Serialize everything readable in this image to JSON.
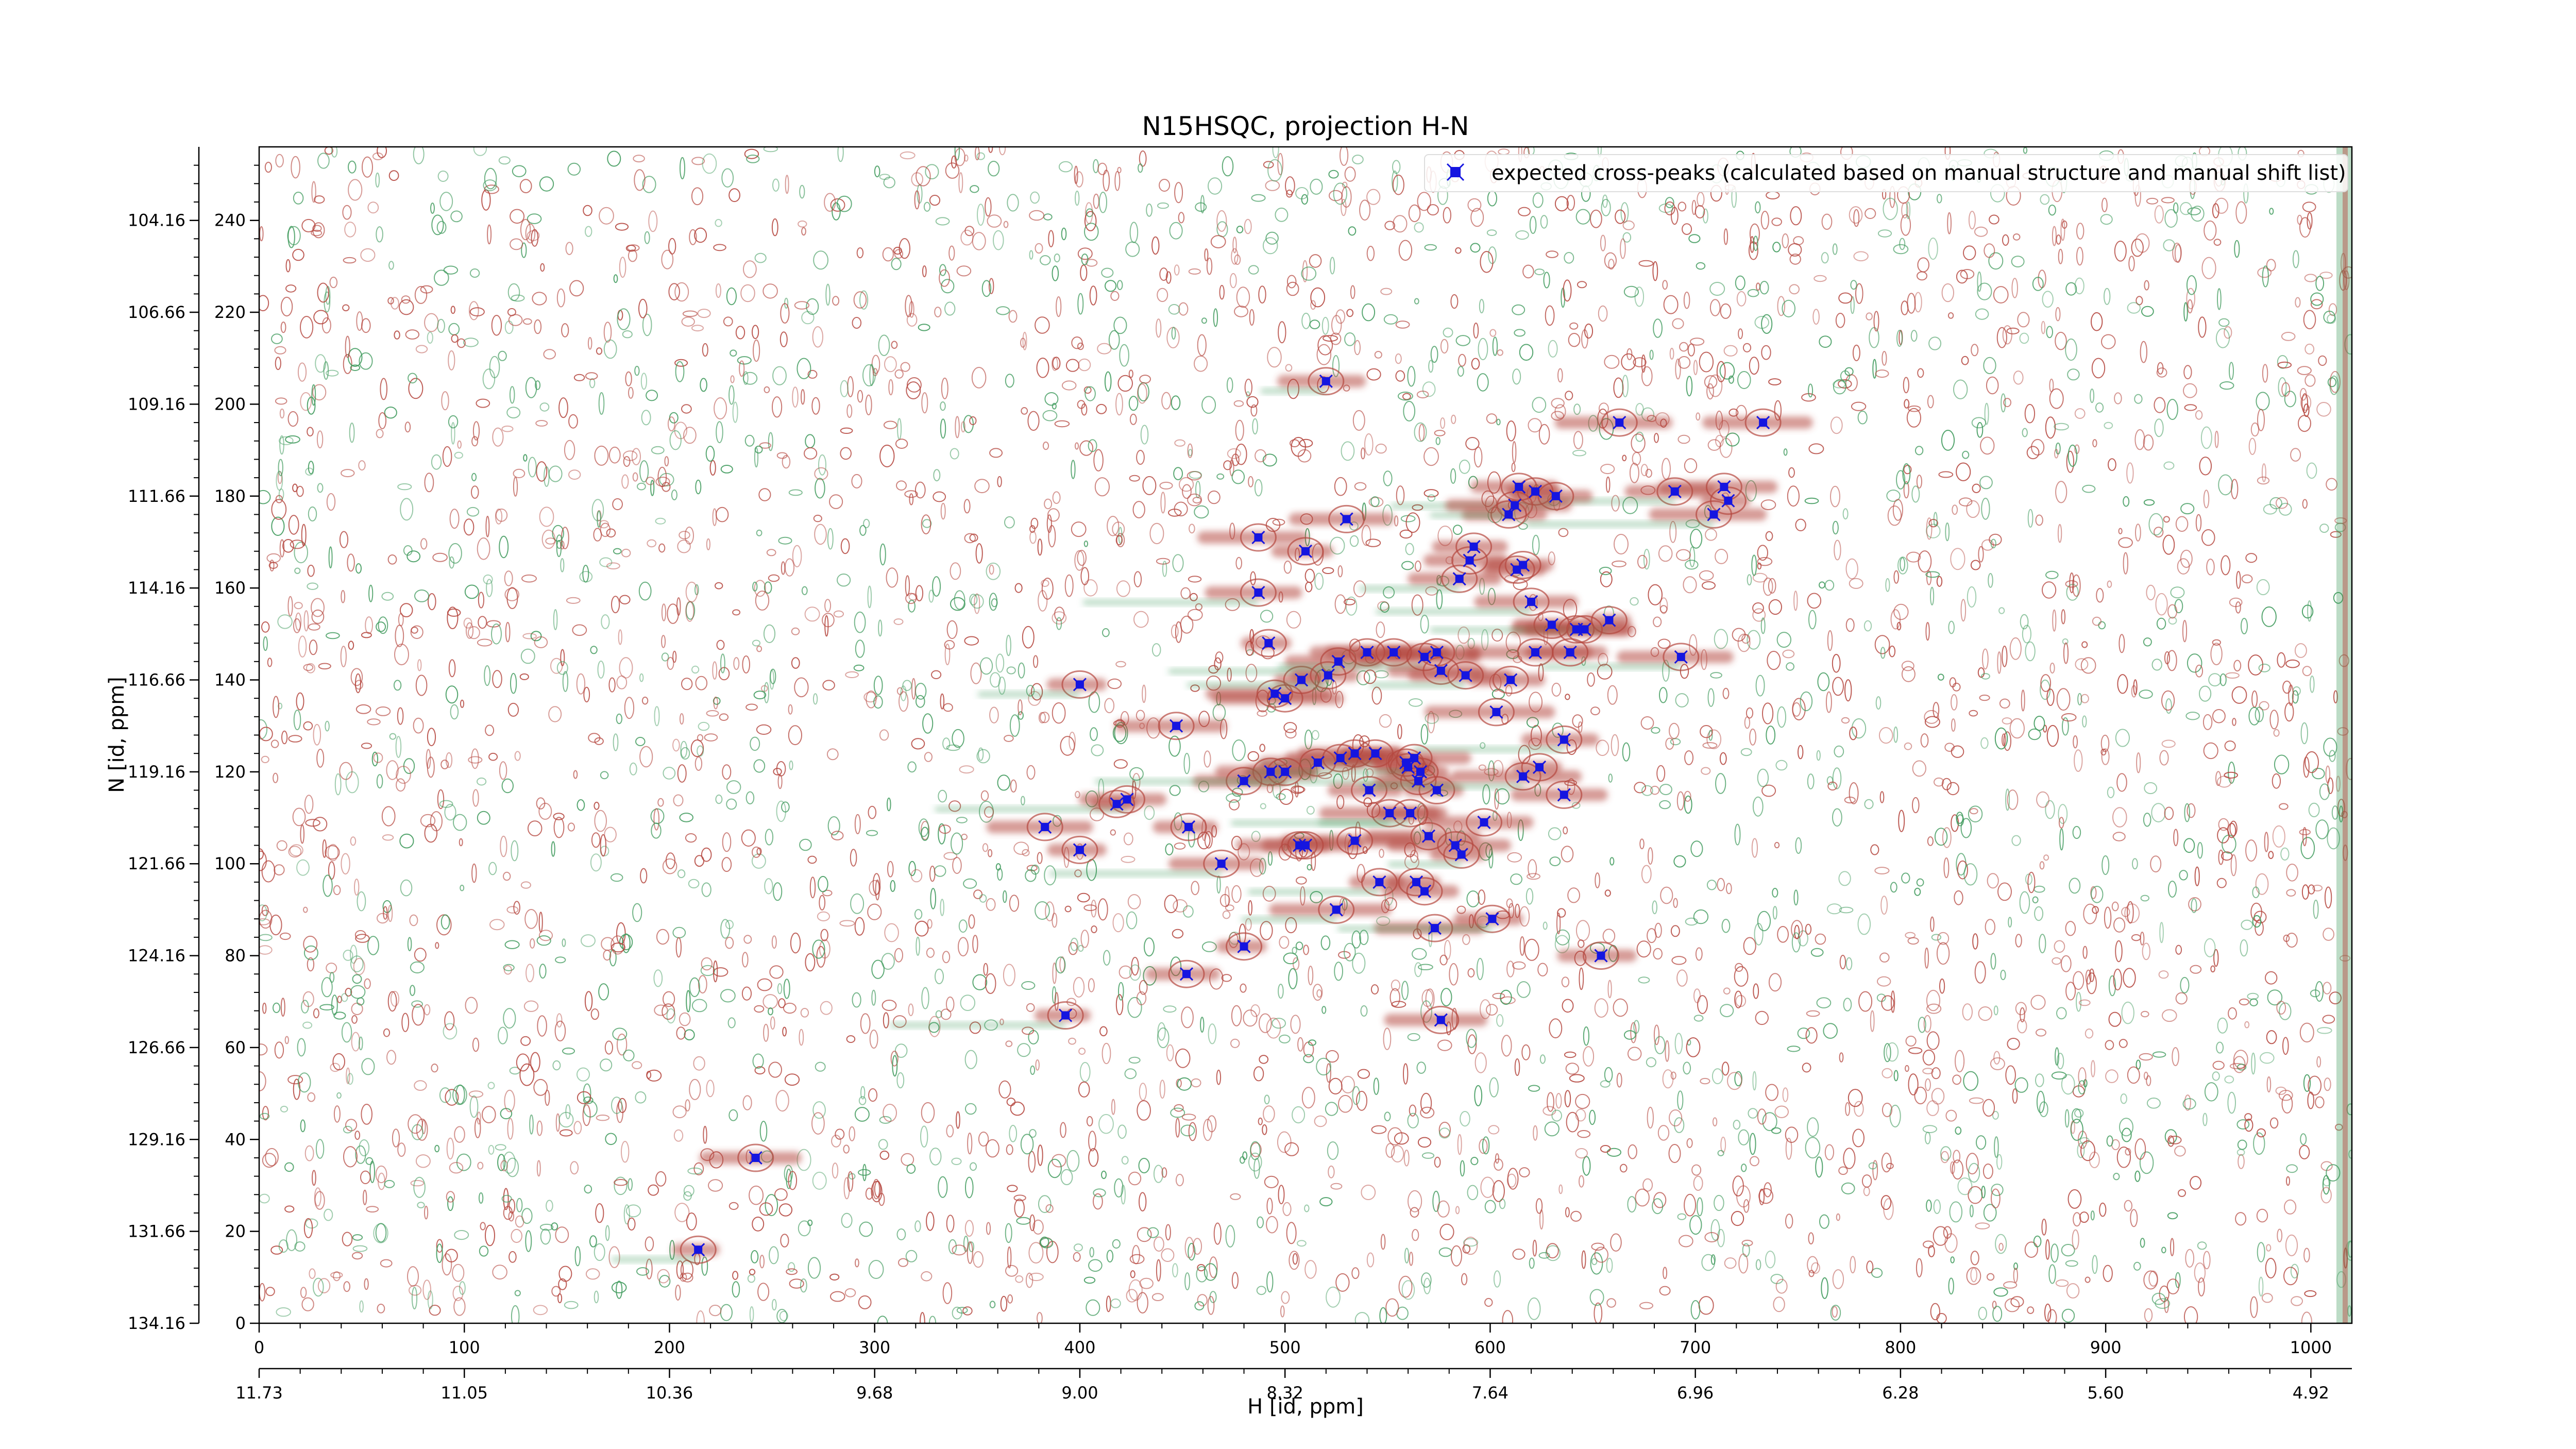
{
  "chart_data": {
    "type": "scatter",
    "title": "N15HSQC, projection H-N",
    "xlabel": "H [id, ppm]",
    "ylabel": "N [id, ppm]",
    "xlim": [
      0,
      1020
    ],
    "ylim": [
      0,
      256
    ],
    "x_ticks": [
      0,
      100,
      200,
      300,
      400,
      500,
      600,
      700,
      800,
      900,
      1000
    ],
    "y_ticks": [
      0,
      20,
      40,
      60,
      80,
      100,
      120,
      140,
      160,
      180,
      200,
      220,
      240
    ],
    "x_ppm_ticks": [
      "11.73",
      "11.05",
      "10.36",
      "9.68",
      "9.00",
      "8.32",
      "7.64",
      "6.96",
      "6.28",
      "5.60",
      "4.92"
    ],
    "y_ppm_ticks": [
      "134.16",
      "131.66",
      "129.16",
      "126.66",
      "124.16",
      "121.66",
      "119.16",
      "116.66",
      "114.16",
      "111.66",
      "109.16",
      "106.66",
      "104.16"
    ],
    "legend": {
      "placement": "top-right",
      "label": "expected cross-peaks (calculated based on manual structure and manual shift list)"
    },
    "grid": false,
    "colors": {
      "positive_contours": "#b5473f",
      "negative_contours": "#3f9a5c",
      "markers": "#1515e0"
    },
    "series": [
      {
        "name": "expected cross-peaks (calculated based on manual structure and manual shift list)",
        "x": [
          520,
          663,
          733,
          690,
          530,
          622,
          632,
          614,
          609,
          612,
          714,
          716,
          709,
          487,
          510,
          487,
          592,
          590,
          585,
          613,
          616,
          620,
          642,
          630,
          658,
          492,
          508,
          526,
          540,
          553,
          568,
          574,
          576,
          588,
          610,
          622,
          693,
          639,
          646,
          400,
          495,
          500,
          521,
          603,
          447,
          636,
          527,
          534,
          544,
          560,
          563,
          566,
          480,
          493,
          500,
          516,
          541,
          559,
          565,
          574,
          616,
          624,
          636,
          423,
          418,
          507,
          551,
          570,
          453,
          586,
          383,
          400,
          469,
          510,
          534,
          561,
          583,
          597,
          546,
          564,
          568,
          525,
          480,
          573,
          601,
          654,
          452,
          393,
          576,
          242,
          214
        ],
        "y": [
          205,
          196,
          196,
          181,
          175,
          181,
          180,
          182,
          176,
          178,
          182,
          179,
          176,
          171,
          168,
          159,
          169,
          166,
          162,
          164,
          165,
          157,
          151,
          152,
          153,
          148,
          140,
          144,
          146,
          146,
          145,
          146,
          142,
          141,
          140,
          146,
          145,
          146,
          151,
          139,
          137,
          136,
          141,
          133,
          130,
          127,
          123,
          124,
          124,
          121,
          123,
          120,
          118,
          120,
          120,
          122,
          116,
          122,
          118,
          116,
          119,
          121,
          115,
          114,
          113,
          104,
          111,
          106,
          108,
          102,
          108,
          103,
          100,
          104,
          105,
          111,
          104,
          109,
          96,
          96,
          94,
          90,
          82,
          86,
          88,
          80,
          76,
          67,
          66,
          36,
          16
        ]
      }
    ]
  }
}
